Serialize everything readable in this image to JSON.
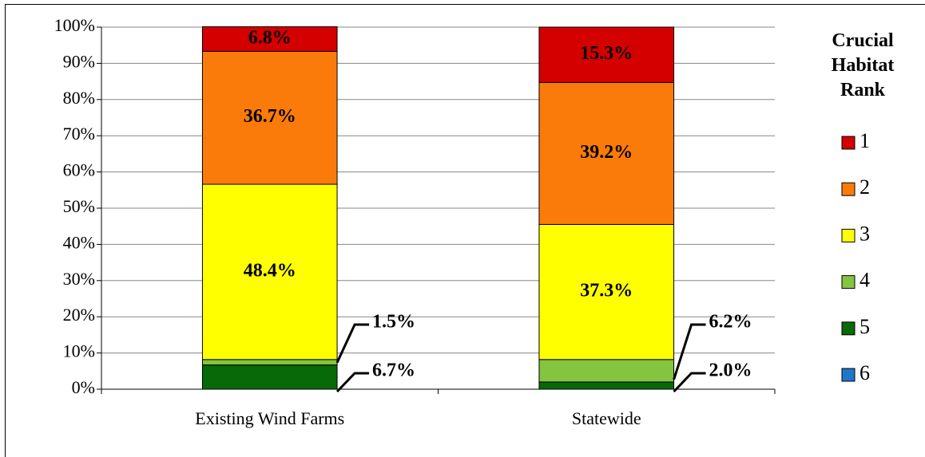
{
  "chart_data": {
    "type": "stacked_bar",
    "categories": [
      "Existing Wind Farms",
      "Statewide"
    ],
    "series": [
      {
        "name": "1",
        "color": "#d40000",
        "values": [
          6.8,
          15.3
        ],
        "value_labels": [
          "6.8%",
          "15.3%"
        ]
      },
      {
        "name": "2",
        "color": "#fb7b0a",
        "values": [
          36.7,
          39.2
        ],
        "value_labels": [
          "36.7%",
          "39.2%"
        ]
      },
      {
        "name": "3",
        "color": "#ffff00",
        "values": [
          48.4,
          37.3
        ],
        "value_labels": [
          "48.4%",
          "37.3%"
        ]
      },
      {
        "name": "4",
        "color": "#84c43e",
        "values": [
          1.5,
          6.2
        ],
        "value_labels": [
          "1.5%",
          "6.2%"
        ]
      },
      {
        "name": "5",
        "color": "#086908",
        "values": [
          6.7,
          2.0
        ],
        "value_labels": [
          "6.7%",
          "2.0%"
        ]
      },
      {
        "name": "6",
        "color": "#1f77c9",
        "values": [
          0,
          0
        ]
      }
    ],
    "legend_title": "Crucial Habitat Rank",
    "ylim": [
      0,
      100
    ],
    "yticks": [
      {
        "value": 0,
        "label": "0%"
      },
      {
        "value": 10,
        "label": "10%"
      },
      {
        "value": 20,
        "label": "20%"
      },
      {
        "value": 30,
        "label": "30%"
      },
      {
        "value": 40,
        "label": "40%"
      },
      {
        "value": 50,
        "label": "50%"
      },
      {
        "value": 60,
        "label": "60%"
      },
      {
        "value": 70,
        "label": "70%"
      },
      {
        "value": 80,
        "label": "80%"
      },
      {
        "value": 90,
        "label": "90%"
      },
      {
        "value": 100,
        "label": "100%"
      }
    ],
    "grid": true,
    "legend": "right"
  }
}
